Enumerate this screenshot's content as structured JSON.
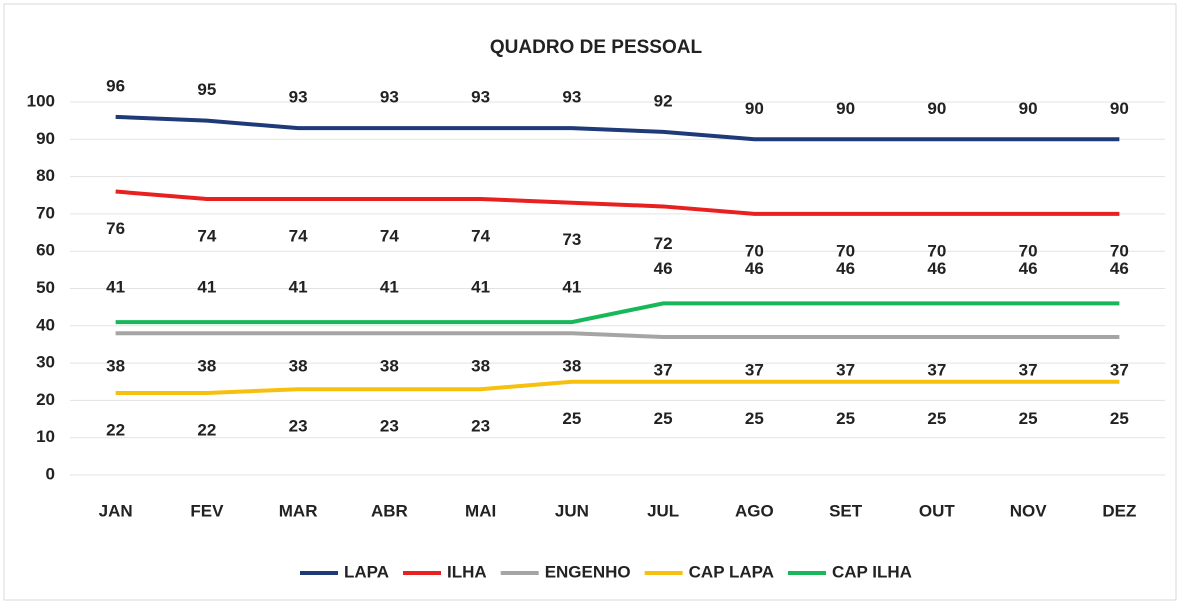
{
  "chart_data": {
    "type": "line",
    "title": "QUADRO DE PESSOAL",
    "categories": [
      "JAN",
      "FEV",
      "MAR",
      "ABR",
      "MAI",
      "JUN",
      "JUL",
      "AGO",
      "SET",
      "OUT",
      "NOV",
      "DEZ"
    ],
    "series": [
      {
        "name": "LAPA",
        "color": "#1f3a78",
        "values": [
          96,
          95,
          93,
          93,
          93,
          93,
          92,
          90,
          90,
          90,
          90,
          90
        ]
      },
      {
        "name": "ILHA",
        "color": "#e8201f",
        "values": [
          76,
          74,
          74,
          74,
          74,
          73,
          72,
          70,
          70,
          70,
          70,
          70
        ]
      },
      {
        "name": "ENGENHO",
        "color": "#a5a5a5",
        "values": [
          38,
          38,
          38,
          38,
          38,
          38,
          37,
          37,
          37,
          37,
          37,
          37
        ]
      },
      {
        "name": "CAP LAPA",
        "color": "#f5c10e",
        "values": [
          22,
          22,
          23,
          23,
          23,
          25,
          25,
          25,
          25,
          25,
          25,
          25
        ]
      },
      {
        "name": "CAP ILHA",
        "color": "#18b85a",
        "values": [
          41,
          41,
          41,
          41,
          41,
          41,
          46,
          46,
          46,
          46,
          46,
          46
        ]
      }
    ],
    "ylim": [
      0,
      100
    ],
    "yticks": [
      0,
      10,
      20,
      30,
      40,
      50,
      60,
      70,
      80,
      90,
      100
    ],
    "grid": true,
    "legend": "bottom"
  }
}
